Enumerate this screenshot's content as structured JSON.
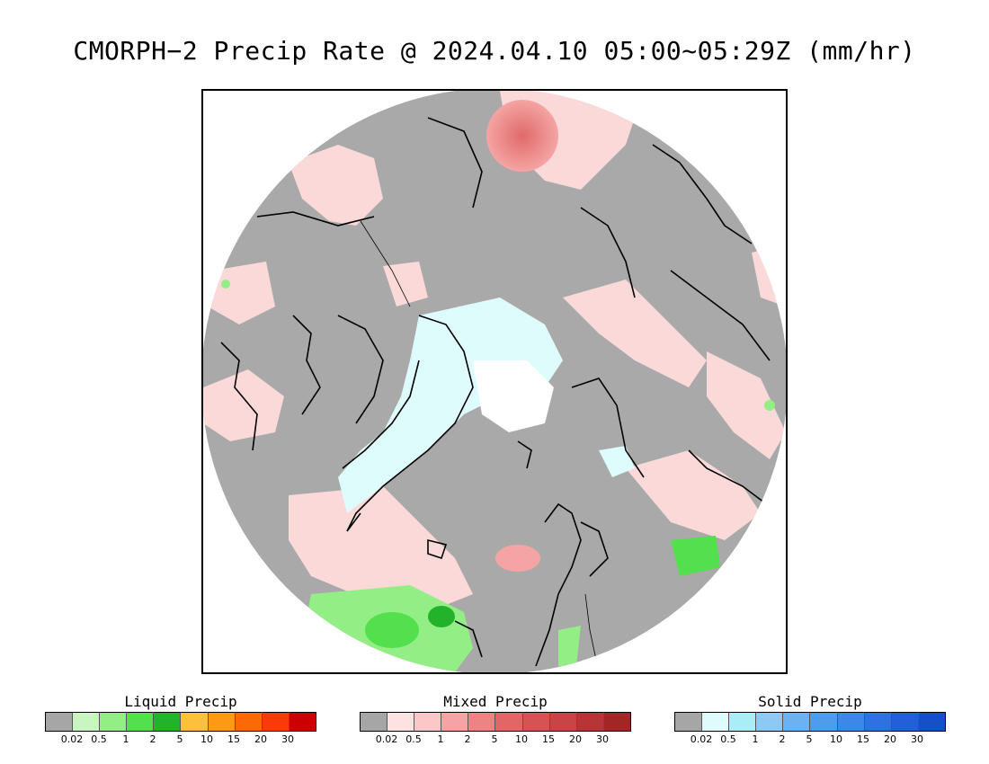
{
  "title": "CMORPH−2 Precip Rate @ 2024.04.10 05:00~05:29Z (mm/hr)",
  "map": {
    "projection": "polar-stereographic-north",
    "background_color": "#a9a9a9",
    "coastline_color": "#000000"
  },
  "legends": [
    {
      "title": "Liquid Precip",
      "colors": [
        "#a6a6a6",
        "#c8f5c0",
        "#94ee86",
        "#52e04c",
        "#22b32a",
        "#fbc13e",
        "#fc9a16",
        "#fc6a08",
        "#fb3a0c",
        "#cc0000"
      ],
      "ticks": [
        "0.02",
        "0.5",
        "1",
        "2",
        "5",
        "10",
        "15",
        "20",
        "30"
      ]
    },
    {
      "title": "Mixed Precip",
      "colors": [
        "#a6a6a6",
        "#fde2e2",
        "#fbc7c7",
        "#f5a4a4",
        "#ee8383",
        "#e26666",
        "#d55353",
        "#c94444",
        "#b83535",
        "#a12727"
      ],
      "ticks": [
        "0.02",
        "0.5",
        "1",
        "2",
        "5",
        "10",
        "15",
        "20",
        "30"
      ]
    },
    {
      "title": "Solid Precip",
      "colors": [
        "#a6a6a6",
        "#dffcfd",
        "#a9eef6",
        "#8ccaf5",
        "#6ab2f2",
        "#4e9ded",
        "#3c88e8",
        "#2d72e0",
        "#2160d6",
        "#1550c7"
      ],
      "ticks": [
        "0.02",
        "0.5",
        "1",
        "2",
        "5",
        "10",
        "15",
        "20",
        "30"
      ]
    }
  ]
}
